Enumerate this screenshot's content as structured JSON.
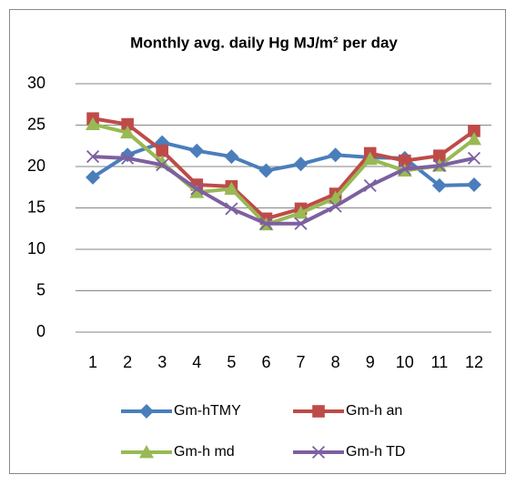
{
  "chart_data": {
    "type": "line",
    "title": "Monthly avg. daily Hg MJ/m² per day",
    "categories": [
      "1",
      "2",
      "3",
      "4",
      "5",
      "6",
      "7",
      "8",
      "9",
      "10",
      "11",
      "12"
    ],
    "series": [
      {
        "name": "Gm-hTMY",
        "color": "#4a7ebb",
        "marker": "diamond",
        "values": [
          18.7,
          21.4,
          22.9,
          21.9,
          21.2,
          19.5,
          20.3,
          21.4,
          21.1,
          21.0,
          17.7,
          17.8
        ]
      },
      {
        "name": "Gm-h an",
        "color": "#be4b48",
        "marker": "square",
        "values": [
          25.8,
          25.1,
          21.9,
          17.8,
          17.6,
          13.7,
          14.9,
          16.7,
          21.6,
          20.7,
          21.3,
          24.3
        ]
      },
      {
        "name": "Gm-h md",
        "color": "#98b954",
        "marker": "triangle",
        "values": [
          25.1,
          24.1,
          20.5,
          16.9,
          17.3,
          13.0,
          14.4,
          16.2,
          20.9,
          19.5,
          20.1,
          23.3
        ]
      },
      {
        "name": "Gm-h TD",
        "color": "#7d60a0",
        "marker": "x",
        "values": [
          21.2,
          21.0,
          20.2,
          17.3,
          14.9,
          13.1,
          13.1,
          15.2,
          17.7,
          19.7,
          20.1,
          21.0
        ]
      }
    ],
    "ylim": [
      0,
      30
    ],
    "yticks": [
      0,
      5,
      10,
      15,
      20,
      25,
      30
    ],
    "grid": true,
    "legend": "bottom"
  }
}
